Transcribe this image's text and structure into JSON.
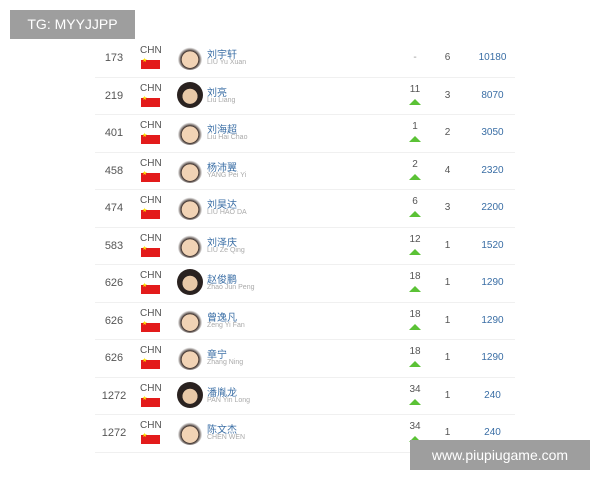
{
  "overlay_tg": "TG: MYYJJPP",
  "overlay_site": "www.piupiugame.com",
  "colors": {
    "name": "#3a6ea5",
    "arrow_up": "#5bc236",
    "flag": "#e31b1b"
  },
  "rows": [
    {
      "rank": "173",
      "country": "CHN",
      "name_cn": "刘宇轩",
      "name_en": "LIU Yu Xuan",
      "change": "-",
      "up": false,
      "tournaments": "6",
      "points": "10180"
    },
    {
      "rank": "219",
      "country": "CHN",
      "name_cn": "刘亮",
      "name_en": "Liu Liang",
      "change": "11",
      "up": true,
      "tournaments": "3",
      "points": "8070"
    },
    {
      "rank": "401",
      "country": "CHN",
      "name_cn": "刘海超",
      "name_en": "Liu Hai Chao",
      "change": "1",
      "up": true,
      "tournaments": "2",
      "points": "3050"
    },
    {
      "rank": "458",
      "country": "CHN",
      "name_cn": "杨沛翼",
      "name_en": "YANG Pei Yi",
      "change": "2",
      "up": true,
      "tournaments": "4",
      "points": "2320"
    },
    {
      "rank": "474",
      "country": "CHN",
      "name_cn": "刘昊达",
      "name_en": "LIU HAO DA",
      "change": "6",
      "up": true,
      "tournaments": "3",
      "points": "2200"
    },
    {
      "rank": "583",
      "country": "CHN",
      "name_cn": "刘泽庆",
      "name_en": "LIU Ze Qing",
      "change": "12",
      "up": true,
      "tournaments": "1",
      "points": "1520"
    },
    {
      "rank": "626",
      "country": "CHN",
      "name_cn": "赵俊鹏",
      "name_en": "Zhao Jun Peng",
      "change": "18",
      "up": true,
      "tournaments": "1",
      "points": "1290"
    },
    {
      "rank": "626",
      "country": "CHN",
      "name_cn": "曾逸凡",
      "name_en": "Zeng Yi Fan",
      "change": "18",
      "up": true,
      "tournaments": "1",
      "points": "1290"
    },
    {
      "rank": "626",
      "country": "CHN",
      "name_cn": "章宁",
      "name_en": "Zhang Ning",
      "change": "18",
      "up": true,
      "tournaments": "1",
      "points": "1290"
    },
    {
      "rank": "1272",
      "country": "CHN",
      "name_cn": "潘胤龙",
      "name_en": "PAN Yin Long",
      "change": "34",
      "up": true,
      "tournaments": "1",
      "points": "240"
    },
    {
      "rank": "1272",
      "country": "CHN",
      "name_cn": "陈文杰",
      "name_en": "CHEN WEN",
      "change": "34",
      "up": true,
      "tournaments": "1",
      "points": "240"
    }
  ]
}
